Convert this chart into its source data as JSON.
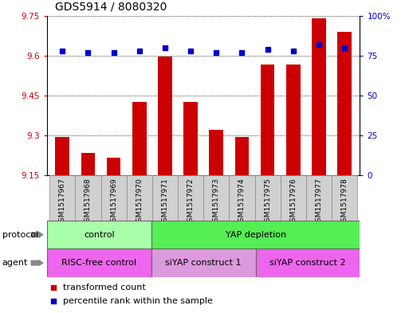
{
  "title": "GDS5914 / 8080320",
  "samples": [
    "GSM1517967",
    "GSM1517968",
    "GSM1517969",
    "GSM1517970",
    "GSM1517971",
    "GSM1517972",
    "GSM1517973",
    "GSM1517974",
    "GSM1517975",
    "GSM1517976",
    "GSM1517977",
    "GSM1517978"
  ],
  "transformed_counts": [
    9.295,
    9.235,
    9.215,
    9.425,
    9.595,
    9.425,
    9.32,
    9.295,
    9.565,
    9.565,
    9.74,
    9.69
  ],
  "percentile_ranks": [
    78,
    77,
    77,
    78,
    80,
    78,
    77,
    77,
    79,
    78,
    82,
    80
  ],
  "bar_bottom": 9.15,
  "ylim_left": [
    9.15,
    9.75
  ],
  "ylim_right": [
    0,
    100
  ],
  "yticks_left": [
    9.15,
    9.3,
    9.45,
    9.6,
    9.75
  ],
  "yticks_right": [
    0,
    25,
    50,
    75,
    100
  ],
  "ytick_labels_left": [
    "9.15",
    "9.3",
    "9.45",
    "9.6",
    "9.75"
  ],
  "ytick_labels_right": [
    "0",
    "25",
    "50",
    "75",
    "100%"
  ],
  "bar_color": "#cc0000",
  "dot_color": "#0000cc",
  "grid_color": "#000000",
  "sample_box_color": "#d0d0d0",
  "protocol_groups": [
    {
      "label": "control",
      "start": 0,
      "end": 3,
      "color": "#aaffaa"
    },
    {
      "label": "YAP depletion",
      "start": 4,
      "end": 11,
      "color": "#55ee55"
    }
  ],
  "agent_groups": [
    {
      "label": "RISC-free control",
      "start": 0,
      "end": 3,
      "color": "#ee66ee"
    },
    {
      "label": "siYAP construct 1",
      "start": 4,
      "end": 7,
      "color": "#dd99dd"
    },
    {
      "label": "siYAP construct 2",
      "start": 8,
      "end": 11,
      "color": "#ee66ee"
    }
  ],
  "legend_items": [
    {
      "label": "transformed count",
      "color": "#cc0000"
    },
    {
      "label": "percentile rank within the sample",
      "color": "#0000cc"
    }
  ],
  "protocol_label": "protocol",
  "agent_label": "agent",
  "bg_color": "#ffffff",
  "tick_label_color_left": "#cc0000",
  "tick_label_color_right": "#0000cc",
  "title_fontsize": 10,
  "axis_fontsize": 7.5,
  "sample_fontsize": 6.5,
  "row_label_fontsize": 8,
  "legend_fontsize": 8,
  "group_fontsize": 8
}
